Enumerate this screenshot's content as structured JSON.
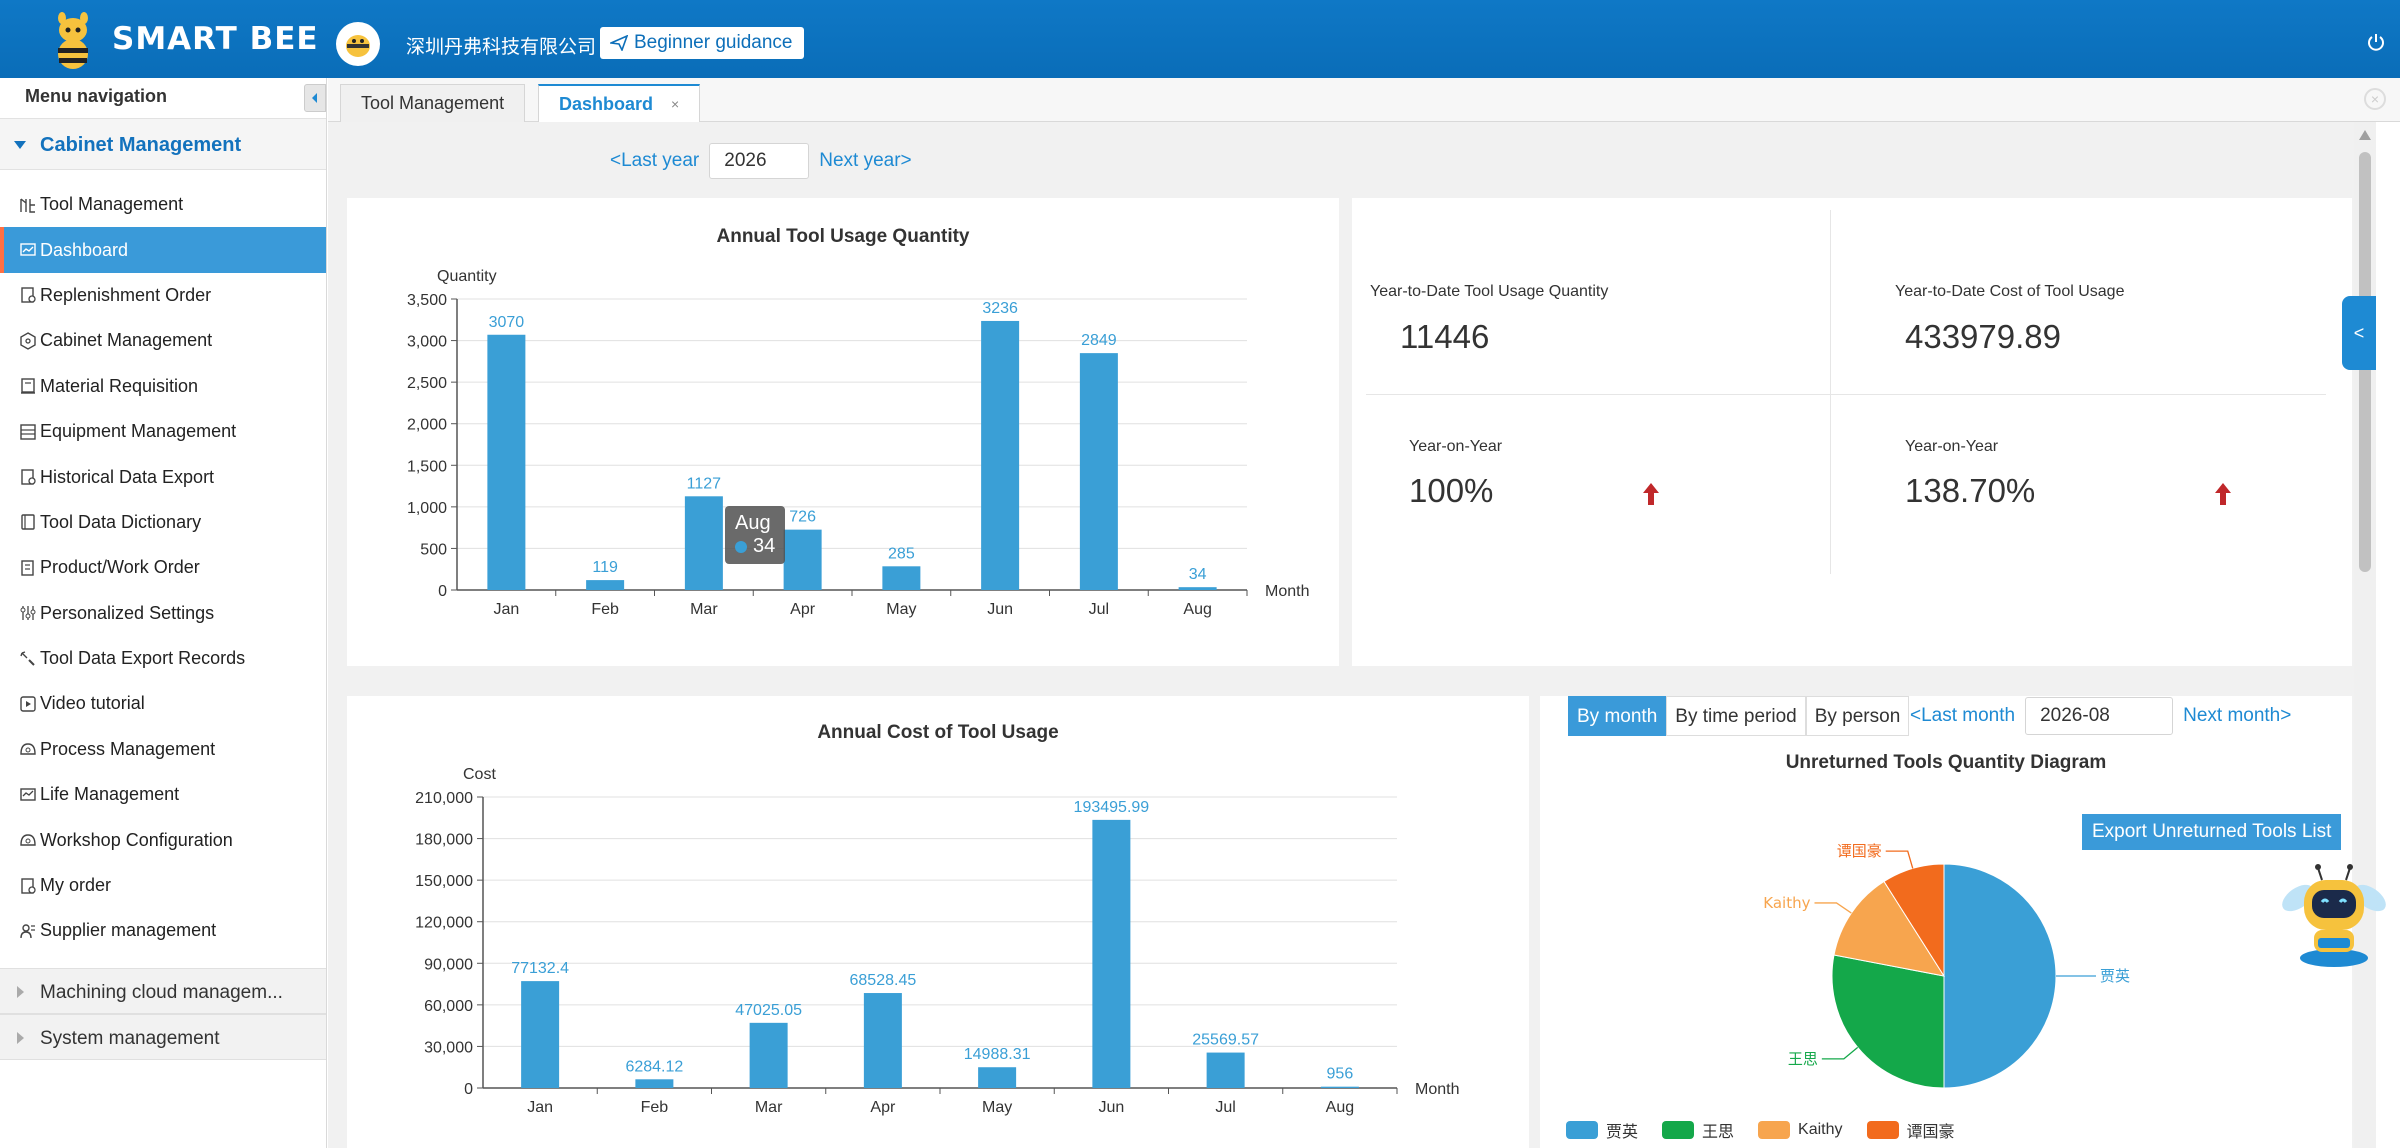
{
  "header": {
    "app_name": "SMART BEE",
    "company": "深圳丹弗科技有限公司",
    "guide_label": "Beginner guidance"
  },
  "sidebar": {
    "title": "Menu navigation",
    "group": "Cabinet Management",
    "items": [
      {
        "label": "Tool Management",
        "icon": "tool-icon"
      },
      {
        "label": "Dashboard",
        "icon": "dashboard-icon",
        "active": true
      },
      {
        "label": "Replenishment Order",
        "icon": "order-icon"
      },
      {
        "label": "Cabinet Management",
        "icon": "cabinet-icon"
      },
      {
        "label": "Material Requisition",
        "icon": "requisition-icon"
      },
      {
        "label": "Equipment Management",
        "icon": "equipment-icon"
      },
      {
        "label": "Historical Data Export",
        "icon": "export-icon"
      },
      {
        "label": "Tool Data Dictionary",
        "icon": "dictionary-icon"
      },
      {
        "label": "Product/Work Order",
        "icon": "work-order-icon"
      },
      {
        "label": "Personalized Settings",
        "icon": "settings-icon"
      },
      {
        "label": "Tool Data Export Records",
        "icon": "records-icon"
      },
      {
        "label": "Video tutorial",
        "icon": "video-icon"
      },
      {
        "label": "Process Management",
        "icon": "process-icon"
      },
      {
        "label": "Life Management",
        "icon": "life-icon"
      },
      {
        "label": "Workshop Configuration",
        "icon": "workshop-icon"
      },
      {
        "label": "My order",
        "icon": "my-order-icon"
      },
      {
        "label": "Supplier management",
        "icon": "supplier-icon"
      }
    ],
    "collapsed_groups": [
      "Machining cloud managem...",
      "System management"
    ]
  },
  "tabs": [
    {
      "label": "Tool Management",
      "active": false
    },
    {
      "label": "Dashboard",
      "active": true,
      "close": "×"
    }
  ],
  "year_nav": {
    "prev": "<Last year",
    "year": "2026",
    "next": "Next year>"
  },
  "stats": {
    "ytd_qty_label": "Year-to-Date Tool Usage Quantity",
    "ytd_qty_value": "11446",
    "ytd_cost_label": "Year-to-Date Cost of Tool Usage",
    "ytd_cost_value": "433979.89",
    "yoy_label_1": "Year-on-Year",
    "yoy_value_1": "100%",
    "yoy_label_2": "Year-on-Year",
    "yoy_value_2": "138.70%",
    "arrow_color": "#c0282a"
  },
  "tooltip": {
    "title": "Aug",
    "value": "34"
  },
  "pie_controls": {
    "modes": [
      "By month",
      "By time period",
      "By person"
    ],
    "active_mode": "By month",
    "prev": "<Last month",
    "month": "2026-08",
    "next": "Next month>",
    "export": "Export Unreturned Tools List"
  },
  "colors": {
    "bar": "#3a9fd6",
    "accent": "#1e8ad3",
    "header": "#0f78c6"
  },
  "chart_data": [
    {
      "type": "bar",
      "title": "Annual Tool Usage Quantity",
      "ylabel": "Quantity",
      "xlabel": "Month",
      "categories": [
        "Jan",
        "Feb",
        "Mar",
        "Apr",
        "May",
        "Jun",
        "Jul",
        "Aug"
      ],
      "values": [
        3070,
        119,
        1127,
        726,
        285,
        3236,
        2849,
        34
      ],
      "labels": [
        "3070",
        "119",
        "1127",
        "726",
        "285",
        "3236",
        "2849",
        "34"
      ],
      "ylim": [
        0,
        3500
      ],
      "yticks": [
        "0",
        "500",
        "1,000",
        "1,500",
        "2,000",
        "2,500",
        "3,000",
        "3,500"
      ],
      "grid": true
    },
    {
      "type": "bar",
      "title": "Annual Cost of Tool Usage",
      "ylabel": "Cost",
      "xlabel": "Month",
      "categories": [
        "Jan",
        "Feb",
        "Mar",
        "Apr",
        "May",
        "Jun",
        "Jul",
        "Aug"
      ],
      "values": [
        77132.4,
        6284.12,
        47025.05,
        68528.45,
        14988.31,
        193495.99,
        25569.57,
        956
      ],
      "labels": [
        "77132.4",
        "6284.12",
        "47025.05",
        "68528.45",
        "14988.31",
        "193495.99",
        "25569.57",
        "956"
      ],
      "ylim": [
        0,
        210000
      ],
      "yticks": [
        "0",
        "30,000",
        "60,000",
        "90,000",
        "120,000",
        "150,000",
        "180,000",
        "210,000"
      ],
      "grid": true
    },
    {
      "type": "pie",
      "title": "Unreturned Tools Quantity Diagram",
      "slices": [
        {
          "name": "贾英",
          "value": 50,
          "color": "#3a9fd6"
        },
        {
          "name": "王思",
          "value": 28,
          "color": "#14a84a"
        },
        {
          "name": "Kaithy",
          "value": 13,
          "color": "#f7a54e"
        },
        {
          "name": "谭国豪",
          "value": 9,
          "color": "#f26b1d"
        }
      ]
    }
  ]
}
